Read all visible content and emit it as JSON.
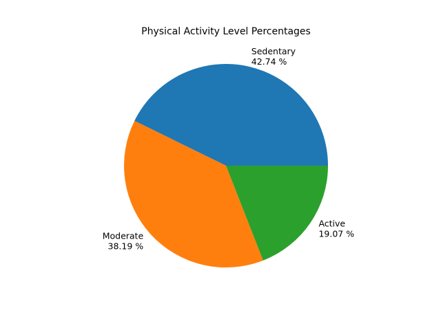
{
  "chart_data": {
    "type": "pie",
    "title": "Physical Activity Level Percentages",
    "categories": [
      "Sedentary",
      "Moderate",
      "Active"
    ],
    "values": [
      42.74,
      38.19,
      19.07
    ],
    "value_labels": [
      "42.74 %",
      "38.19 %",
      "19.07 %"
    ],
    "colors": [
      "#1f77b4",
      "#ff7f0e",
      "#2ca02c"
    ],
    "start_angle_deg": 0,
    "direction": "counterclockwise",
    "legend": "none"
  }
}
